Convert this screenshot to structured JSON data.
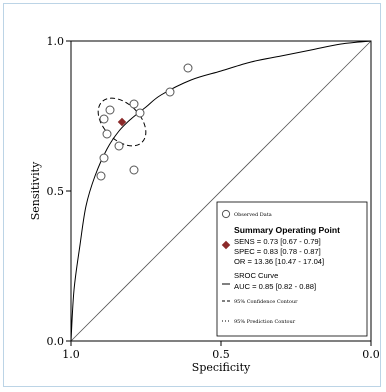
{
  "chart_data": {
    "type": "scatter",
    "xlabel": "Specificity",
    "ylabel": "Sensitivity",
    "x_axis": {
      "reversed": true,
      "range": [
        1.0,
        0.0
      ]
    },
    "y_axis": {
      "range": [
        0.0,
        1.0
      ]
    },
    "x_ticks": [
      "1.0",
      "0.5",
      "0.0"
    ],
    "y_ticks": [
      "1.0",
      "0.5",
      "0.0"
    ],
    "observed_points": [
      {
        "specificity": 0.61,
        "sensitivity": 0.91
      },
      {
        "specificity": 0.67,
        "sensitivity": 0.83
      },
      {
        "specificity": 0.77,
        "sensitivity": 0.76
      },
      {
        "specificity": 0.79,
        "sensitivity": 0.79
      },
      {
        "specificity": 0.87,
        "sensitivity": 0.77
      },
      {
        "specificity": 0.89,
        "sensitivity": 0.74
      },
      {
        "specificity": 0.88,
        "sensitivity": 0.69
      },
      {
        "specificity": 0.84,
        "sensitivity": 0.65
      },
      {
        "specificity": 0.89,
        "sensitivity": 0.61
      },
      {
        "specificity": 0.9,
        "sensitivity": 0.55
      },
      {
        "specificity": 0.79,
        "sensitivity": 0.57
      }
    ],
    "summary_point": {
      "specificity": 0.83,
      "sensitivity": 0.73
    },
    "sroc_curve": [
      [
        1.0,
        0.0
      ],
      [
        0.99,
        0.17
      ],
      [
        0.97,
        0.32
      ],
      [
        0.95,
        0.45
      ],
      [
        0.92,
        0.55
      ],
      [
        0.88,
        0.64
      ],
      [
        0.84,
        0.7
      ],
      [
        0.8,
        0.74
      ],
      [
        0.75,
        0.78
      ],
      [
        0.7,
        0.82
      ],
      [
        0.6,
        0.87
      ],
      [
        0.5,
        0.9
      ],
      [
        0.4,
        0.93
      ],
      [
        0.3,
        0.95
      ],
      [
        0.2,
        0.97
      ],
      [
        0.1,
        0.99
      ],
      [
        0.0,
        1.0
      ]
    ],
    "confidence_contour": {
      "center": [
        0.83,
        0.73
      ],
      "rx": 0.06,
      "ry": 0.095,
      "rotation_deg": -45
    },
    "reference_line": [
      [
        1.0,
        0.0
      ],
      [
        0.0,
        1.0
      ]
    ],
    "legend": {
      "position": "bottom-right",
      "observed_label": "Observed Data",
      "summary_title": "Summary Operating Point",
      "summary_lines": [
        "SENS = 0.73 [0.67 - 0.79]",
        "SPEC = 0.83 [0.78 - 0.87]",
        "OR = 13.36 [10.47 - 17.04]"
      ],
      "sroc_title": "SROC Curve",
      "sroc_auc": "AUC = 0.85 [0.82 - 0.88]",
      "confidence_label": "95% Confidence Contour",
      "prediction_label": "95% Prediction Contour"
    },
    "colors": {
      "observed": "#555555",
      "summary": "#8b2a2a",
      "lines": "#000000",
      "frame": "#bcd4e6"
    }
  }
}
